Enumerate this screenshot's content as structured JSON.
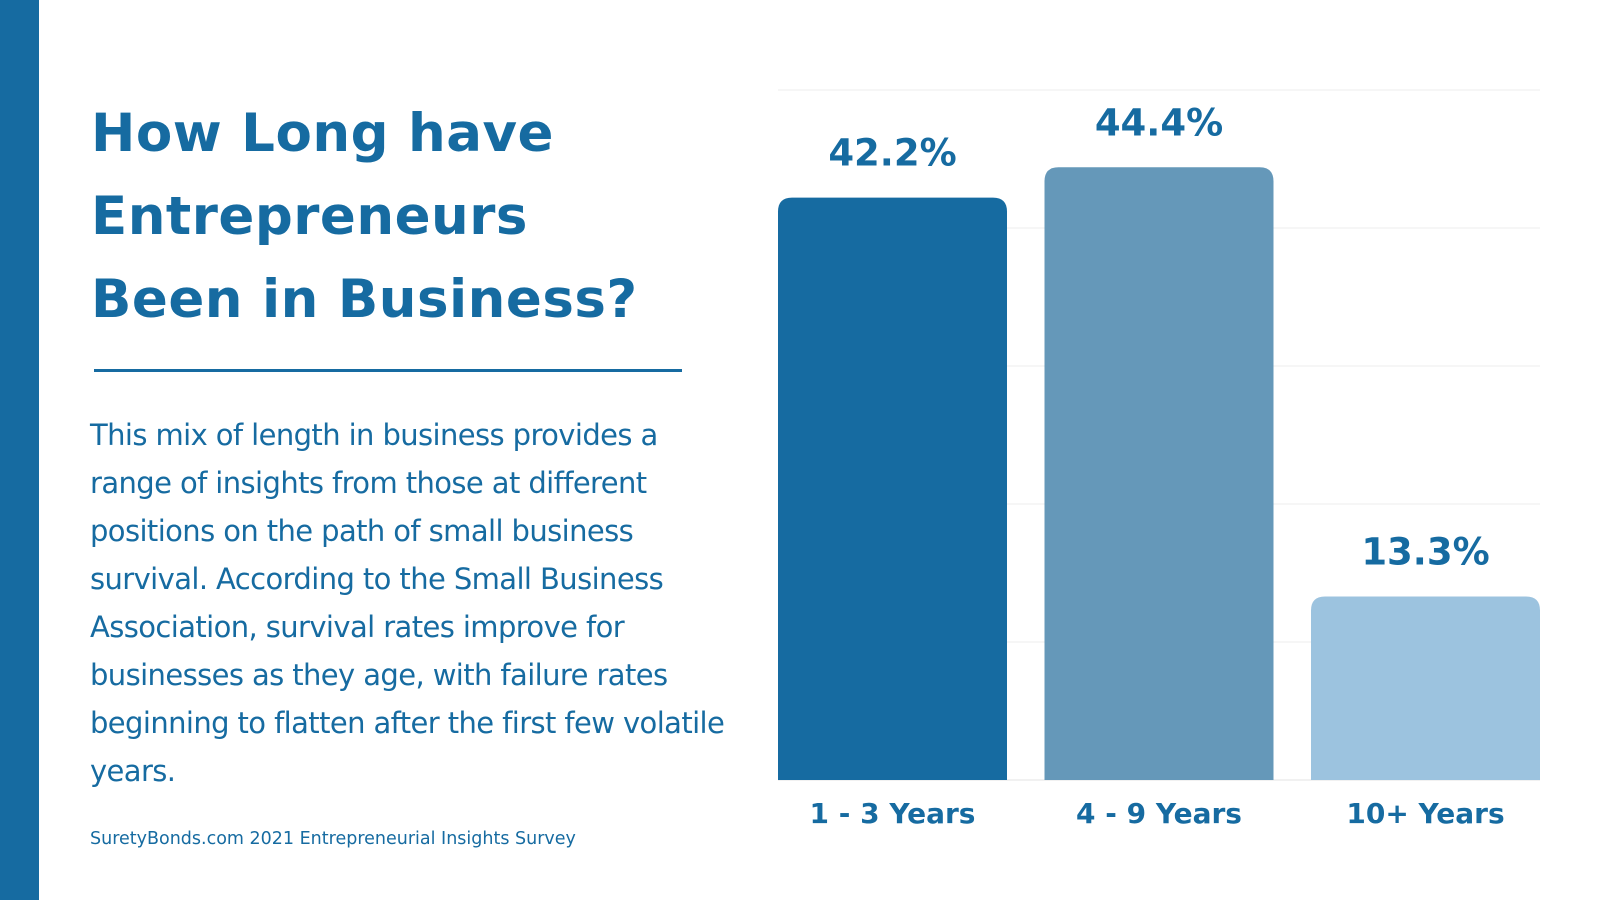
{
  "page": {
    "title_lines": [
      "How Long have",
      "Entrepreneurs",
      "Been in Business?"
    ],
    "body_text": "This mix of length in business provides a range of insights from those at different positions on the path of small business survival. According to the Small Business Association, survival rates improve for businesses as they age, with failure rates beginning to flatten after the first few volatile years.",
    "source": "SuretyBonds.com 2021 Entrepreneurial Insights Survey",
    "accent_color": "#166ba1"
  },
  "chart_data": {
    "type": "bar",
    "categories": [
      "1 - 3 Years",
      "4 - 9 Years",
      "10+ Years"
    ],
    "values": [
      42.2,
      44.4,
      13.3
    ],
    "value_labels": [
      "42.2%",
      "44.4%",
      "13.3%"
    ],
    "colors": [
      "#166ba1",
      "#6598b9",
      "#9cc3df"
    ],
    "ylim": [
      0,
      50
    ],
    "grid": true,
    "title": "",
    "xlabel": "",
    "ylabel": ""
  }
}
